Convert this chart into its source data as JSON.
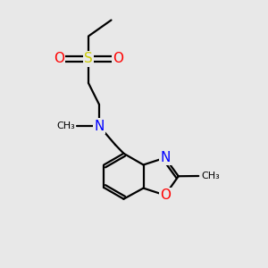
{
  "bg_color": "#e8e8e8",
  "bond_color": "#000000",
  "bond_width": 1.6,
  "atom_colors": {
    "S": "#cccc00",
    "O": "#ff0000",
    "N": "#0000ff",
    "C": "#000000"
  },
  "font_size": 9,
  "fig_size": [
    3.0,
    3.0
  ],
  "dpi": 100,
  "xlim": [
    0,
    10
  ],
  "ylim": [
    0,
    10
  ]
}
